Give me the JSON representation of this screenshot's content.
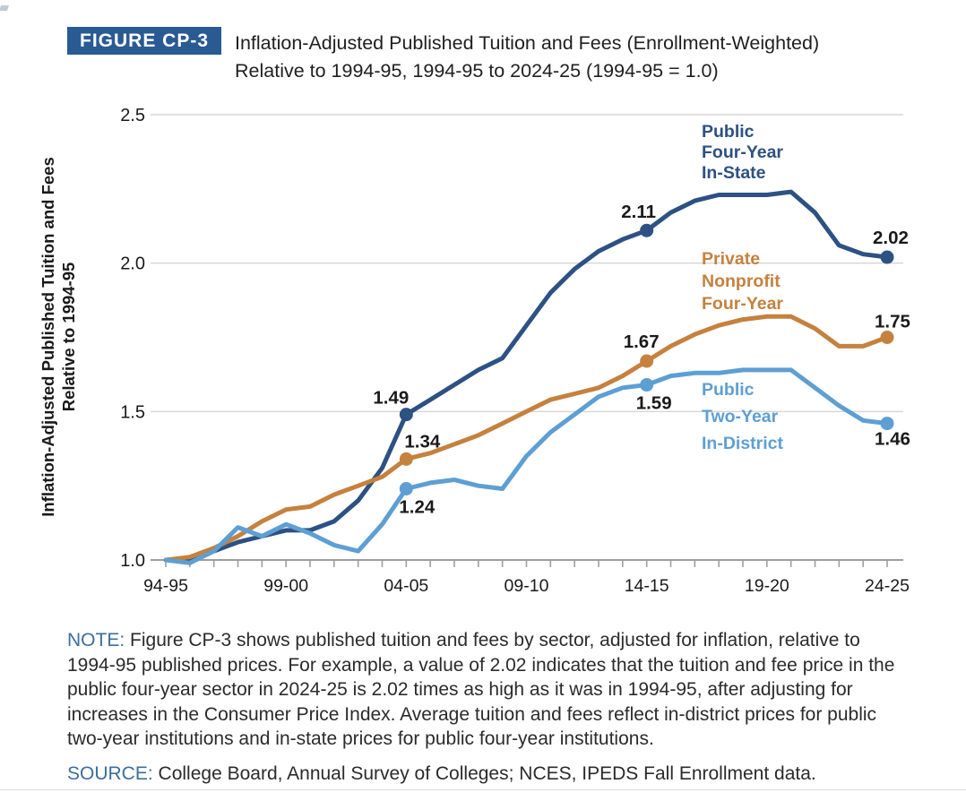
{
  "figure": {
    "badge": "FIGURE CP-3",
    "title_line1": "Inflation-Adjusted Published Tuition and Fees (Enrollment-Weighted)",
    "title_line2": "Relative to 1994-95, 1994-95 to 2024-25 (1994-95 = 1.0)"
  },
  "note": {
    "label": "NOTE:",
    "text": "Figure CP-3 shows published tuition and fees by sector, adjusted for inflation, relative to 1994-95 published prices. For example, a value of 2.02 indicates that the tuition and fee price in the public four-year sector in 2024-25 is 2.02 times as high as it was in 1994-95, after adjusting for increases in the Consumer Price Index. Average tuition and fees reflect in-district prices for public two-year institutions and in-state prices for public four-year institutions."
  },
  "source": {
    "label": "SOURCE:",
    "text": "College Board, Annual Survey of Colleges; NCES, IPEDS Fall Enrollment data."
  },
  "colors": {
    "public_four_year": "#2d5183",
    "private_nonprofit": "#c5813e",
    "public_two_year": "#5d9fd3",
    "badge_bg": "#2a5a94",
    "note_label": "#3d6e9e",
    "gridline": "#cdcdcd",
    "axis": "#9e9e9e",
    "label_text": "#1a1a1a"
  },
  "chart_data": {
    "type": "line",
    "title": "Inflation-Adjusted Published Tuition and Fees (Enrollment-Weighted) Relative to 1994-95, 1994-95 to 2024-25 (1994-95 = 1.0)",
    "xlabel": "",
    "ylabel_line1": "Inflation-Adjusted Published Tuition and Fees",
    "ylabel_line2": "Relative to 1994-95",
    "ylim": [
      1.0,
      2.5
    ],
    "grid": "horizontal",
    "legend_position": "inline-right",
    "x": [
      "94-95",
      "95-96",
      "96-97",
      "97-98",
      "98-99",
      "99-00",
      "00-01",
      "01-02",
      "02-03",
      "03-04",
      "04-05",
      "05-06",
      "06-07",
      "07-08",
      "08-09",
      "09-10",
      "10-11",
      "11-12",
      "12-13",
      "13-14",
      "14-15",
      "15-16",
      "16-17",
      "17-18",
      "18-19",
      "19-20",
      "20-21",
      "21-22",
      "22-23",
      "23-24",
      "24-25"
    ],
    "x_tick_labels": [
      "94-95",
      "99-00",
      "04-05",
      "09-10",
      "14-15",
      "19-20",
      "24-25"
    ],
    "y_tick_labels": [
      "1.0",
      "1.5",
      "2.0",
      "2.5"
    ],
    "y_ticks": [
      1.0,
      1.5,
      2.0,
      2.5
    ],
    "series": [
      {
        "id": "pub4",
        "name": "Public Four-Year In-State",
        "legend_lines": [
          "Public",
          "Four-Year",
          "In-State"
        ],
        "color": "#2d5183",
        "values": [
          1.0,
          1.0,
          1.03,
          1.06,
          1.08,
          1.1,
          1.1,
          1.13,
          1.2,
          1.31,
          1.49,
          1.54,
          1.59,
          1.64,
          1.68,
          1.79,
          1.9,
          1.98,
          2.04,
          2.08,
          2.11,
          2.17,
          2.21,
          2.23,
          2.23,
          2.23,
          2.24,
          2.17,
          2.06,
          2.03,
          2.02
        ]
      },
      {
        "id": "priv",
        "name": "Private Nonprofit Four-Year",
        "legend_lines": [
          "Private",
          "Nonprofit",
          "Four-Year"
        ],
        "color": "#c5813e",
        "values": [
          1.0,
          1.01,
          1.04,
          1.08,
          1.13,
          1.17,
          1.18,
          1.22,
          1.25,
          1.28,
          1.34,
          1.36,
          1.39,
          1.42,
          1.46,
          1.5,
          1.54,
          1.56,
          1.58,
          1.62,
          1.67,
          1.72,
          1.76,
          1.79,
          1.81,
          1.82,
          1.82,
          1.78,
          1.72,
          1.72,
          1.75
        ]
      },
      {
        "id": "pub2",
        "name": "Public Two-Year In-District",
        "legend_lines": [
          "Public",
          "Two-Year",
          "In-District"
        ],
        "color": "#5d9fd3",
        "values": [
          1.0,
          0.99,
          1.03,
          1.11,
          1.08,
          1.12,
          1.09,
          1.05,
          1.03,
          1.12,
          1.24,
          1.26,
          1.27,
          1.25,
          1.24,
          1.35,
          1.43,
          1.49,
          1.55,
          1.58,
          1.59,
          1.62,
          1.63,
          1.63,
          1.64,
          1.64,
          1.64,
          1.58,
          1.52,
          1.47,
          1.46
        ]
      }
    ],
    "annotations": [
      {
        "series": "pub4",
        "year": "04-05",
        "value": 1.49,
        "label": "1.49",
        "side": "above"
      },
      {
        "series": "pub4",
        "year": "14-15",
        "value": 2.11,
        "label": "2.11",
        "side": "above"
      },
      {
        "series": "pub4",
        "year": "24-25",
        "value": 2.02,
        "label": "2.02",
        "side": "above"
      },
      {
        "series": "priv",
        "year": "04-05",
        "value": 1.34,
        "label": "1.34",
        "side": "above"
      },
      {
        "series": "priv",
        "year": "14-15",
        "value": 1.67,
        "label": "1.67",
        "side": "above"
      },
      {
        "series": "priv",
        "year": "24-25",
        "value": 1.75,
        "label": "1.75",
        "side": "above"
      },
      {
        "series": "pub2",
        "year": "04-05",
        "value": 1.24,
        "label": "1.24",
        "side": "below"
      },
      {
        "series": "pub2",
        "year": "14-15",
        "value": 1.59,
        "label": "1.59",
        "side": "below"
      },
      {
        "series": "pub2",
        "year": "24-25",
        "value": 1.46,
        "label": "1.46",
        "side": "below"
      }
    ]
  }
}
